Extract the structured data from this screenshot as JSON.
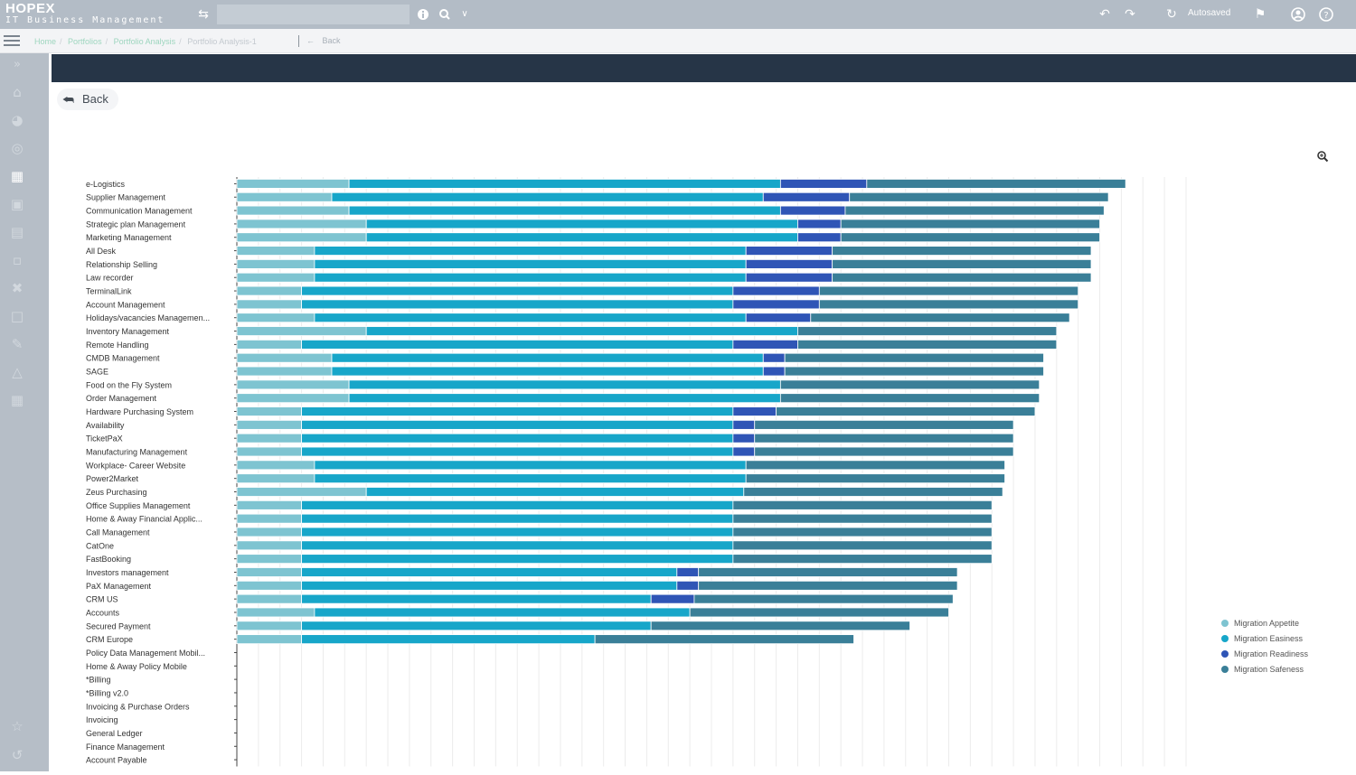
{
  "app": {
    "brand_name": "HOPEX",
    "brand_sub": "IT Business Management"
  },
  "topbar": {
    "autosaved": "Autosaved"
  },
  "icons": {
    "swap": "swap-icon",
    "info": "info-icon",
    "search": "search-icon",
    "chevron": "chevron-down-icon",
    "undo": "undo-icon",
    "redo": "redo-icon",
    "sync": "sync-icon",
    "notify": "notification-icon",
    "user": "user-icon",
    "help": "help-icon",
    "zoom": "zoom-icon",
    "back": "back-arrow-icon"
  },
  "breadcrumb": {
    "items": [
      "Home",
      "Portfolios",
      "Portfolio Analysis",
      "Portfolio Analysis-1"
    ],
    "back_label": "Back"
  },
  "main": {
    "back_button": "Back"
  },
  "colors": {
    "banner": "#263547",
    "series": [
      "#7ec4d1",
      "#17a6c9",
      "#2f55b6",
      "#3a7f98"
    ]
  },
  "chart_data": {
    "type": "bar",
    "orientation": "horizontal",
    "stacked": true,
    "xlim": [
      0,
      44
    ],
    "grid": true,
    "legend_position": "right",
    "categories": [
      "e-Logistics",
      "Supplier Management",
      "Communication Management",
      "Strategic plan Management",
      "Marketing Management",
      "All Desk",
      "Relationship Selling",
      "Law recorder",
      "TerminalLink",
      "Account Management",
      "Holidays/vacancies Managemen...",
      "Inventory Management",
      "Remote Handling",
      "CMDB Management",
      "SAGE",
      "Food on the Fly System",
      "Order Management",
      "Hardware Purchasing System",
      "Availability",
      "TicketPaX",
      "Manufacturing Management",
      "Workplace- Career Website",
      "Power2Market",
      "Zeus Purchasing",
      "Office Supplies Management",
      "Home & Away Financial Applic...",
      "Call Management",
      "CatOne",
      "FastBooking",
      "Investors management",
      "PaX Management",
      "CRM US",
      "Accounts",
      "Secured Payment",
      "CRM Europe",
      "Policy Data Management Mobil...",
      "Home & Away Policy Mobile",
      "*Billing",
      "*Billing v2.0",
      "Invoicing & Purchase Orders",
      "Invoicing",
      "General Ledger",
      "Finance Management",
      "Account Payable"
    ],
    "series": [
      {
        "name": "Migration Appetite",
        "values": [
          5.2,
          4.4,
          5.2,
          6,
          6,
          3.6,
          3.6,
          3.6,
          3,
          3,
          3.6,
          6,
          3,
          4.4,
          4.4,
          5.2,
          5.2,
          3,
          3,
          3,
          3,
          3.6,
          3.6,
          6,
          3,
          3,
          3,
          3,
          3,
          3,
          3,
          3,
          3.6,
          3,
          3,
          0,
          0,
          0,
          0,
          0,
          0,
          0,
          0,
          0
        ]
      },
      {
        "name": "Migration Easiness",
        "values": [
          20,
          20,
          20,
          20,
          20,
          20,
          20,
          20,
          20,
          20,
          20,
          20,
          20,
          20,
          20,
          20,
          20,
          20,
          20,
          20,
          20,
          20,
          20,
          17.5,
          20,
          20,
          20,
          20,
          20,
          17.4,
          17.4,
          16.2,
          17.4,
          16.2,
          13.6,
          0,
          0,
          0,
          0,
          0,
          0,
          0,
          0,
          0
        ]
      },
      {
        "name": "Migration Readiness",
        "values": [
          4,
          4,
          3,
          2,
          2,
          4,
          4,
          4,
          4,
          4,
          3,
          0,
          3,
          1,
          1,
          0,
          0,
          2,
          1,
          1,
          1,
          0,
          0,
          0,
          0,
          0,
          0,
          0,
          0,
          1,
          1,
          2,
          0,
          0,
          0,
          0,
          0,
          0,
          0,
          0,
          0,
          0,
          0,
          0
        ]
      },
      {
        "name": "Migration Safeness",
        "values": [
          12,
          12,
          12,
          12,
          12,
          12,
          12,
          12,
          12,
          12,
          12,
          12,
          12,
          12,
          12,
          12,
          12,
          12,
          12,
          12,
          12,
          12,
          12,
          12,
          12,
          12,
          12,
          12,
          12,
          12,
          12,
          12,
          12,
          12,
          12,
          0,
          0,
          0,
          0,
          0,
          0,
          0,
          0,
          0
        ]
      }
    ]
  }
}
